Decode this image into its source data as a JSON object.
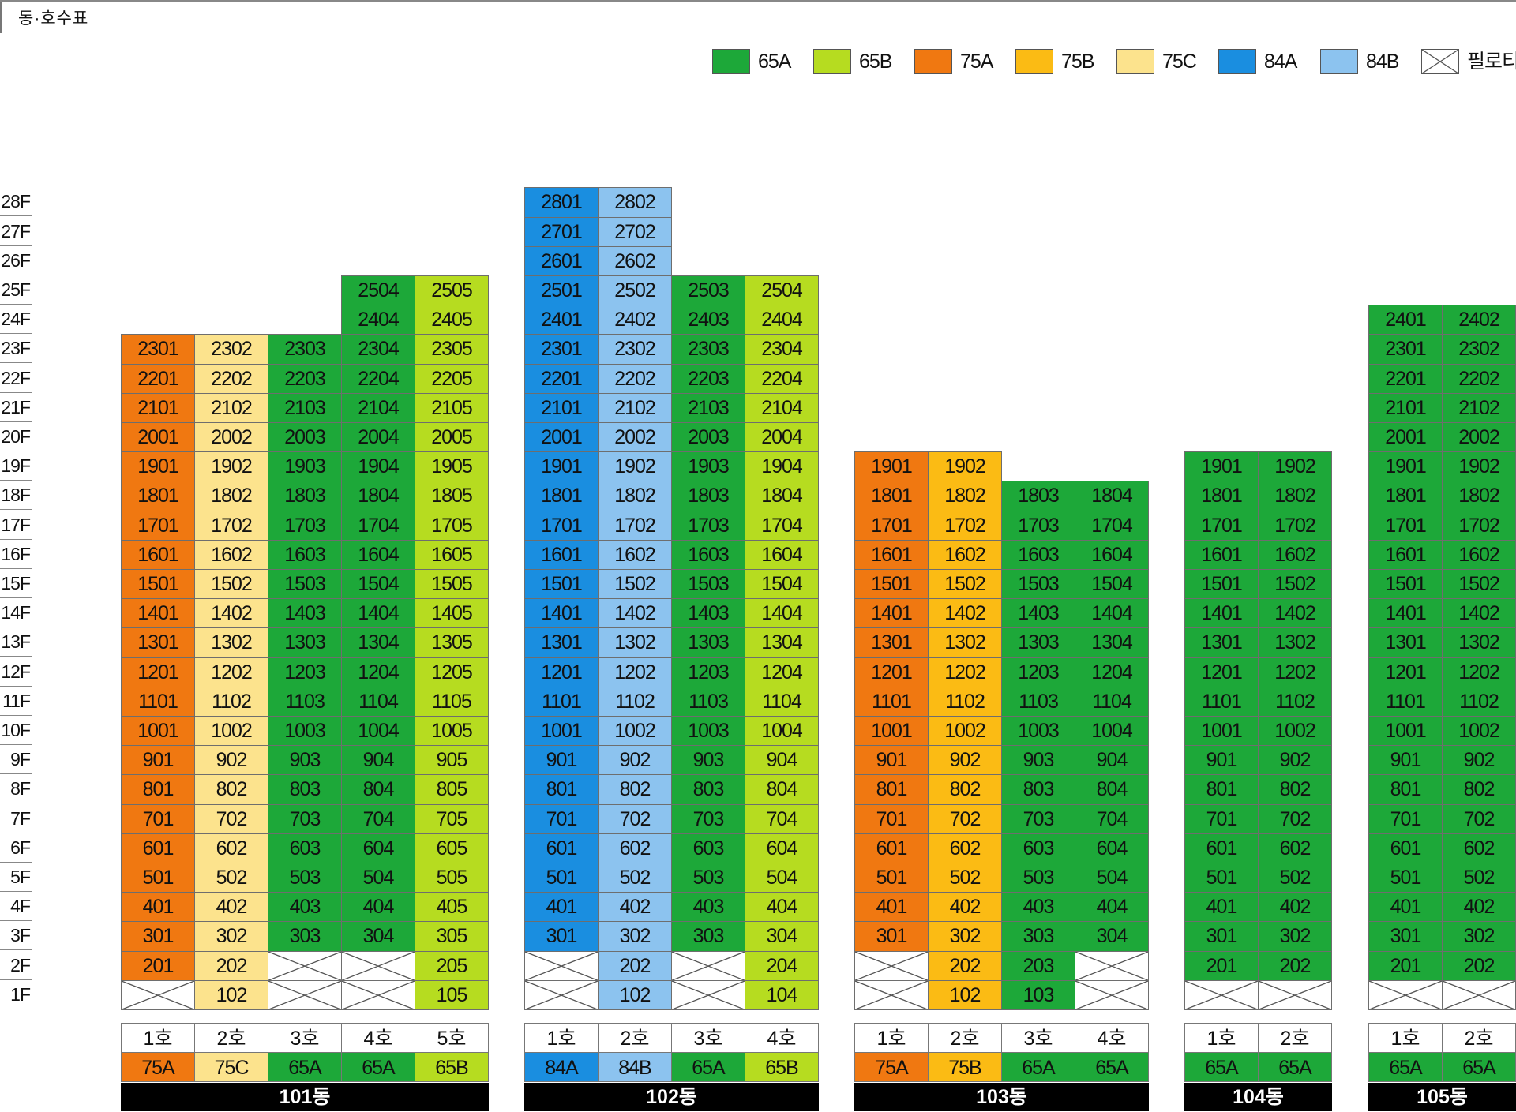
{
  "page": {
    "title": "동·호수표"
  },
  "colors": {
    "65A": "#1da839",
    "65B": "#b6dc20",
    "75A": "#f07811",
    "75B": "#fbbb14",
    "75C": "#fce38d",
    "84A": "#1a8ee0",
    "84B": "#8cc3ef",
    "empty": "#ffffff"
  },
  "legend": [
    {
      "type": "65A",
      "label": "65A",
      "icon": "color-swatch"
    },
    {
      "type": "65B",
      "label": "65B",
      "icon": "color-swatch"
    },
    {
      "type": "75A",
      "label": "75A",
      "icon": "color-swatch"
    },
    {
      "type": "75B",
      "label": "75B",
      "icon": "color-swatch"
    },
    {
      "type": "75C",
      "label": "75C",
      "icon": "color-swatch"
    },
    {
      "type": "84A",
      "label": "84A",
      "icon": "color-swatch"
    },
    {
      "type": "84B",
      "label": "84B",
      "icon": "color-swatch"
    },
    {
      "type": "piloti",
      "label": "필로티",
      "icon": "piloti-cross-icon"
    }
  ],
  "floors": [
    "28F",
    "27F",
    "26F",
    "25F",
    "24F",
    "23F",
    "22F",
    "21F",
    "20F",
    "19F",
    "18F",
    "17F",
    "16F",
    "15F",
    "14F",
    "13F",
    "12F",
    "11F",
    "10F",
    "9F",
    "8F",
    "7F",
    "6F",
    "5F",
    "4F",
    "3F",
    "2F",
    "1F"
  ],
  "buildings": [
    {
      "name": "101동",
      "lines": [
        {
          "ho": "1호",
          "type": "75A",
          "top": 23,
          "piloti": [
            1
          ]
        },
        {
          "ho": "2호",
          "type": "75C",
          "top": 23,
          "piloti": []
        },
        {
          "ho": "3호",
          "type": "65A",
          "top": 23,
          "piloti": [
            1,
            2
          ]
        },
        {
          "ho": "4호",
          "type": "65A",
          "top": 25,
          "piloti": [
            1,
            2
          ]
        },
        {
          "ho": "5호",
          "type": "65B",
          "top": 25,
          "piloti": []
        }
      ]
    },
    {
      "name": "102동",
      "lines": [
        {
          "ho": "1호",
          "type": "84A",
          "top": 28,
          "piloti": [
            1,
            2
          ]
        },
        {
          "ho": "2호",
          "type": "84B",
          "top": 28,
          "piloti": []
        },
        {
          "ho": "3호",
          "type": "65A",
          "top": 25,
          "piloti": [
            1,
            2
          ]
        },
        {
          "ho": "4호",
          "type": "65B",
          "top": 25,
          "piloti": []
        }
      ]
    },
    {
      "name": "103동",
      "lines": [
        {
          "ho": "1호",
          "type": "75A",
          "top": 19,
          "piloti": [
            1,
            2
          ]
        },
        {
          "ho": "2호",
          "type": "75B",
          "top": 19,
          "piloti": []
        },
        {
          "ho": "3호",
          "type": "65A",
          "top": 18,
          "piloti": []
        },
        {
          "ho": "4호",
          "type": "65A",
          "top": 18,
          "piloti": [
            1,
            2
          ]
        }
      ]
    },
    {
      "name": "104동",
      "lines": [
        {
          "ho": "1호",
          "type": "65A",
          "top": 19,
          "piloti": [
            1
          ]
        },
        {
          "ho": "2호",
          "type": "65A",
          "top": 19,
          "piloti": [
            1
          ]
        }
      ]
    },
    {
      "name": "105동",
      "lines": [
        {
          "ho": "1호",
          "type": "65A",
          "top": 24,
          "piloti": [
            1
          ]
        },
        {
          "ho": "2호",
          "type": "65A",
          "top": 24,
          "piloti": [
            1
          ]
        }
      ]
    }
  ]
}
